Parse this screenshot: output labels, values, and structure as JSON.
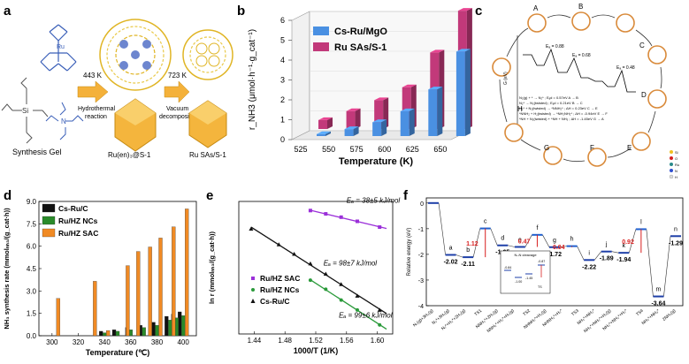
{
  "panel_labels": {
    "a": "a",
    "b": "b",
    "c": "c",
    "d": "d",
    "e": "e",
    "f": "f"
  },
  "panel_a": {
    "gel_label": "Synthesis Gel",
    "step1_temp": "443 K",
    "step1_name_1": "Hydrothermal",
    "step1_name_2": "reaction",
    "step2_temp": "723 K",
    "step2_name_1": "Vacuum",
    "step2_name_2": "decomposition",
    "product1": "Ru(en)₃@S-1",
    "product2": "Ru SAs/S-1",
    "atoms": {
      "ru": "Ru",
      "n": "N",
      "si": "Si",
      "o": "O"
    }
  },
  "panel_c": {
    "states": [
      "A",
      "B",
      "C",
      "D",
      "E",
      "F",
      "G",
      "H"
    ],
    "legend": [
      "Si",
      "O",
      "Ru",
      "N",
      "H"
    ],
    "ea1": "Eₐ = 0.88",
    "ea2": "Eₐ = 0.68",
    "ea3": "Eₐ = 0.48",
    "y_axis": "G (eV)",
    "equations": [
      "N₂(g) + * → N₂* ; Eₐd = 0.57eV   A → B",
      "N₂* → N₂(twisted) ; Eₐd = 0.21eV   B → C",
      "H₂* + N₂(twisted) → *NNH₂* ; ΔH = 0.23eV   C → E",
      "*NNH₂ + H₂(twisted) → *NH₂NH₂* ; ΔH = -0.94eV   E → F",
      "*NH + N₂(twisted) + *NH + NH₃ ; ΔH = -1.45eV   G → A"
    ]
  },
  "panel_f": {
    "y_axis": "Relative energy (eV)",
    "y_ticks": [
      "0",
      "-1",
      "-2",
      "-3",
      "-4"
    ],
    "x_labels": [
      "N₂(g)+3H₂(g)",
      "N₂*+3H₂(g)",
      "N₂*+H₂*+2H₂(g)",
      "TS1",
      "NNH₂*+2H₂(g)",
      "NNH₂*+H₂*+H₂(g)",
      "TS2",
      "NHNH₂*+H₂(g)",
      "NHNH₂*+H₂*",
      "TS3",
      "NH₃*+NH₂*",
      "NH₃*+NH₂*+H₂(g)",
      "NH₃*+NH₂*+H₂*",
      "TS4",
      "NH₃*+NH₃*",
      "2NH₃(g)"
    ],
    "point_labels": [
      "a",
      "b",
      "c",
      "d",
      "e",
      "f",
      "g",
      "h",
      "i",
      "j",
      "k",
      "l",
      "m",
      "n"
    ],
    "energy_labels": [
      "-2.02",
      "-2.11",
      "-1.65",
      "-1.71",
      "-1.72",
      "-2.22",
      "-1.89",
      "-1.94",
      "-3.64",
      "-1.29"
    ],
    "barrier_labels": [
      "1.12",
      "0.47",
      "0.04",
      "0.92"
    ],
    "inset_title": "N–N cleavage",
    "inset_labels": [
      "-0.84",
      "-1.00",
      "-1.45",
      "-0.87",
      "TS"
    ]
  },
  "chart_data": [
    {
      "type": "bar",
      "title": "",
      "xlabel": "Temperature (K)",
      "ylabel": "r_NH3 (μmol·h⁻¹·g_cat⁻¹)",
      "categories": [
        "525",
        "550",
        "575",
        "600",
        "625",
        "650"
      ],
      "ylim": [
        0,
        6
      ],
      "y_ticks": [
        "0",
        "1",
        "2",
        "3",
        "4",
        "5",
        "6"
      ],
      "series": [
        {
          "name": "Cs-Ru/MgO",
          "color": "#4a90e2",
          "values": [
            0.1,
            0.35,
            0.7,
            1.25,
            2.35,
            4.25
          ]
        },
        {
          "name": "Ru SAs/S-1",
          "color": "#c2397a",
          "values": [
            0.45,
            0.9,
            1.45,
            2.1,
            3.85,
            5.95
          ]
        }
      ],
      "legend_position": "top-left",
      "grid": false
    },
    {
      "type": "bar",
      "title": "",
      "xlabel": "Temperature (℃)",
      "ylabel": "NH₃ synthesis rate (mmolₙₕ₃/(g_cat·h))",
      "categories": [
        "300",
        "310",
        "320",
        "330",
        "340",
        "350",
        "360",
        "370",
        "380",
        "390",
        "400"
      ],
      "x_ticks": [
        "300",
        "320",
        "340",
        "360",
        "380",
        "400"
      ],
      "y_ticks": [
        "0.0",
        "1.5",
        "3.0",
        "4.5",
        "6.0",
        "7.5",
        "9.0"
      ],
      "ylim": [
        0,
        9
      ],
      "series": [
        {
          "name": "Cs-Ru/C",
          "color": "#111111",
          "x": [
            340,
            350,
            360,
            370,
            380,
            390,
            395,
            400
          ],
          "values": [
            0.3,
            0.4,
            0.55,
            0.7,
            0.9,
            1.3,
            1.45,
            1.6
          ]
        },
        {
          "name": "Ru/HZ NCs",
          "color": "#2a8a2a",
          "x": [
            340,
            350,
            360,
            370,
            380,
            390,
            395,
            400
          ],
          "values": [
            0.2,
            0.3,
            0.4,
            0.55,
            0.7,
            1.05,
            1.2,
            1.35
          ]
        },
        {
          "name": "Ru/HZ SAC",
          "color": "#f08a24",
          "x": [
            302,
            330,
            340,
            355,
            363,
            372,
            380,
            390,
            400
          ],
          "values": [
            2.5,
            3.65,
            0.35,
            4.7,
            5.65,
            5.95,
            6.55,
            7.3,
            8.5
          ]
        }
      ],
      "legend_position": "top-left"
    },
    {
      "type": "scatter",
      "title": "",
      "xlabel": "1000/T (1/K)",
      "ylabel": "ln r (mmolₙₕ₃/(g_cat·h))",
      "x_ticks": [
        "1.44",
        "1.48",
        "1.52",
        "1.56",
        "1.60"
      ],
      "xlim": [
        1.42,
        1.62
      ],
      "ylim": [
        -1.7,
        1.5
      ],
      "series": [
        {
          "name": "Ru/HZ SAC",
          "color": "#9b30d9",
          "x": [
            1.513,
            1.533,
            1.553,
            1.574,
            1.603
          ],
          "y": [
            1.28,
            1.2,
            1.12,
            1.02,
            0.88
          ],
          "annotation": "Eₐ = 38±5 kJ/mol"
        },
        {
          "name": "Ru/HZ NCs",
          "color": "#2a9a3a",
          "x": [
            1.513,
            1.533,
            1.553,
            1.574,
            1.603
          ],
          "y": [
            -0.4,
            -0.62,
            -0.88,
            -1.12,
            -1.48
          ],
          "annotation": "Eₐ = 98±7 kJ/mol"
        },
        {
          "name": "Cs-Ru/C",
          "color": "#111111",
          "x": [
            1.436,
            1.472,
            1.492,
            1.513,
            1.533,
            1.553,
            1.574,
            1.603
          ],
          "y": [
            0.84,
            0.46,
            0.23,
            0.0,
            -0.25,
            -0.5,
            -0.78,
            -1.12
          ],
          "annotation": "Eₐ = 99±6 kJ/mol"
        }
      ],
      "legend_position": "bottom-left"
    },
    {
      "type": "line",
      "title": "",
      "ylabel": "Relative energy (eV)",
      "ylim": [
        -4,
        0.2
      ],
      "y_ticks": [
        "0",
        "-1",
        "-2",
        "-3",
        "-4"
      ],
      "points": [
        {
          "label": "",
          "value": 0
        },
        {
          "label": "a",
          "value": -2.02
        },
        {
          "label": "b",
          "value": -2.11
        },
        {
          "label": "c",
          "value": -0.99
        },
        {
          "label": "d",
          "value": -1.65
        },
        {
          "label": "e",
          "value": -1.71
        },
        {
          "label": "f",
          "value": -1.24
        },
        {
          "label": "g",
          "value": -1.72
        },
        {
          "label": "h",
          "value": -1.68
        },
        {
          "label": "i",
          "value": -2.22
        },
        {
          "label": "j",
          "value": -1.89
        },
        {
          "label": "k",
          "value": -1.94
        },
        {
          "label": "l",
          "value": -1.02
        },
        {
          "label": "m",
          "value": -3.64
        },
        {
          "label": "n",
          "value": -1.29
        }
      ],
      "barriers": [
        1.12,
        0.47,
        0.04,
        0.92
      ]
    }
  ]
}
